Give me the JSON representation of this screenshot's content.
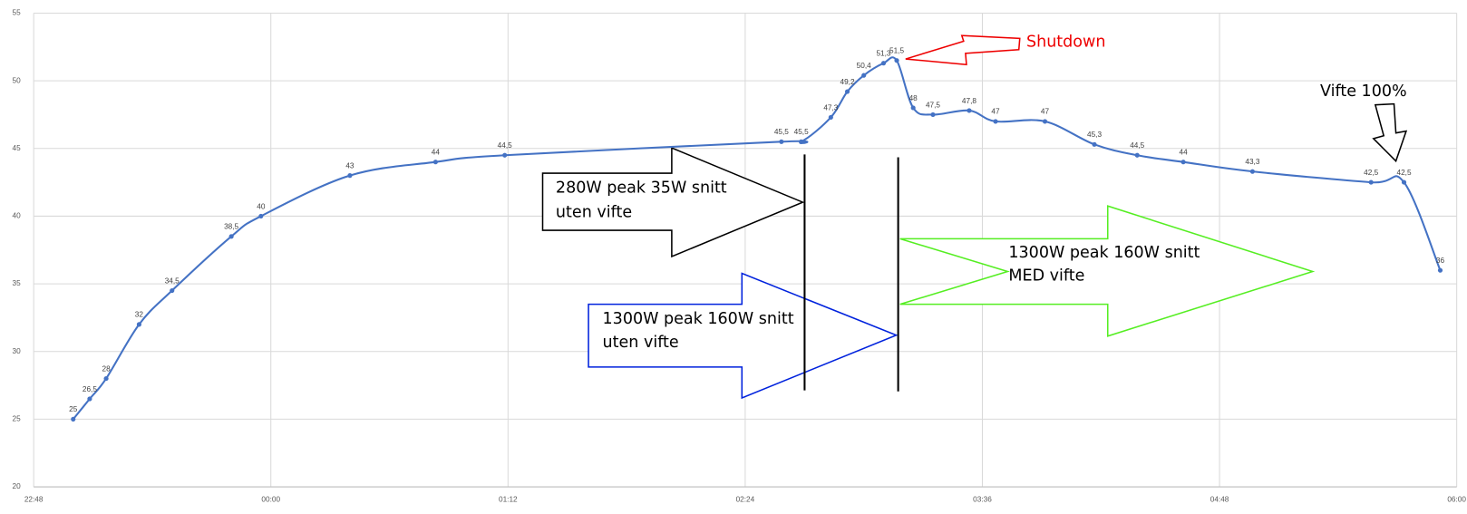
{
  "chart_data": {
    "type": "line",
    "x": [
      "23:00",
      "23:05",
      "23:10",
      "23:20",
      "23:30",
      "23:48",
      "23:57",
      "00:24",
      "00:50",
      "01:11",
      "02:35",
      "02:41",
      "02:50",
      "02:55",
      "03:00",
      "03:06",
      "03:10",
      "03:15",
      "03:21",
      "03:32",
      "03:40",
      "03:55",
      "04:10",
      "04:23",
      "04:37",
      "04:58",
      "05:34",
      "05:44",
      "05:55"
    ],
    "series": [
      {
        "color": "#4472c4",
        "values": [
          25,
          26.5,
          28,
          32,
          34.5,
          38.5,
          40,
          43,
          44,
          44.5,
          45.5,
          45.5,
          47.3,
          49.2,
          50.4,
          51.3,
          51.5,
          48,
          47.5,
          47.8,
          47,
          47,
          45.3,
          44.5,
          44,
          43.3,
          42.5,
          42.5,
          36
        ],
        "value_labels": [
          "25",
          "26,5",
          "28",
          "32",
          "34,5",
          "38,5",
          "40",
          "43",
          "44",
          "44,5",
          "45,5",
          "45,5",
          "47,3",
          "49,2",
          "50,4",
          "51,3",
          "51,5",
          "48",
          "47,5",
          "47,8",
          "47",
          "47",
          "45,3",
          "44,5",
          "44",
          "43,3",
          "42,5",
          "42,5",
          "36"
        ]
      }
    ],
    "xlim": [
      "22:48",
      "06:00"
    ],
    "xticks": [
      "22:48",
      "00:00",
      "01:12",
      "02:24",
      "03:36",
      "04:48",
      "06:00"
    ],
    "ylim": [
      20,
      55
    ],
    "yticks": [
      20,
      25,
      30,
      35,
      40,
      45,
      50,
      55
    ],
    "grid": true,
    "annotations": [
      {
        "lines": [
          "280W peak 35W snitt",
          "uten vifte"
        ]
      },
      {
        "lines": [
          "1300W peak 160W snitt",
          "uten vifte"
        ]
      },
      {
        "lines": [
          "1300W peak 160W snitt",
          "MED vifte"
        ]
      },
      {
        "lines": [
          "Shutdown"
        ]
      },
      {
        "lines": [
          "Vifte 100%"
        ]
      }
    ]
  }
}
